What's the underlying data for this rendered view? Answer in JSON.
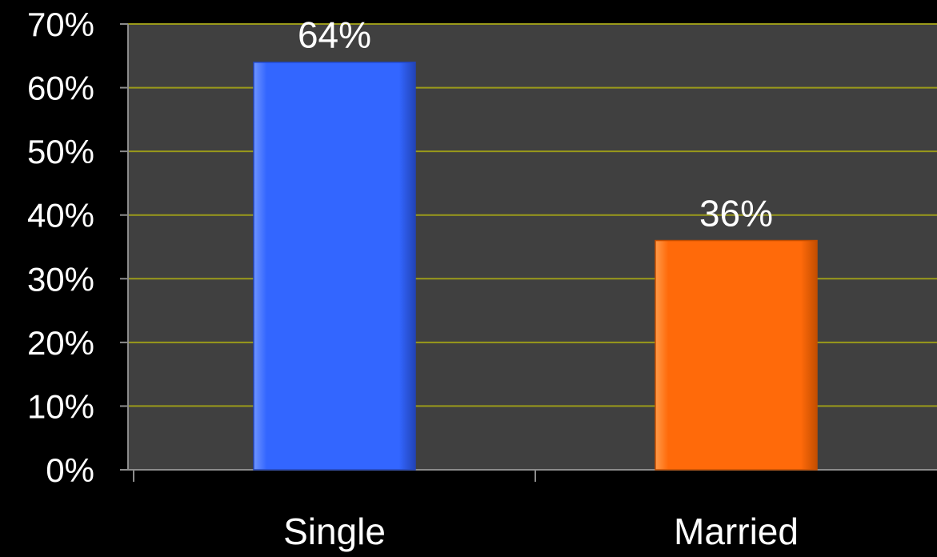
{
  "chart_data": {
    "type": "bar",
    "categories": [
      "Single",
      "Married"
    ],
    "values": [
      64,
      36
    ],
    "data_labels": [
      "64%",
      "36%"
    ],
    "title": "",
    "xlabel": "",
    "ylabel": "",
    "ylim": [
      0,
      70
    ],
    "yticks": [
      0,
      10,
      20,
      30,
      40,
      50,
      60,
      70
    ],
    "ytick_labels": [
      "0%",
      "10%",
      "20%",
      "30%",
      "40%",
      "50%",
      "60%",
      "70%"
    ],
    "grid": true,
    "legend": "none"
  },
  "colors": {
    "background": "#000000",
    "plot_area": "#404040",
    "gridline": "#9a9a1a",
    "axis": "#8c8c8c",
    "text": "#ffffff",
    "bars": [
      "#3366ff",
      "#ff6a0a"
    ],
    "bar_highlights": [
      "#6f95ff",
      "#ff9a4a"
    ],
    "bar_shadows": [
      "#2244b8",
      "#c44e00"
    ]
  }
}
